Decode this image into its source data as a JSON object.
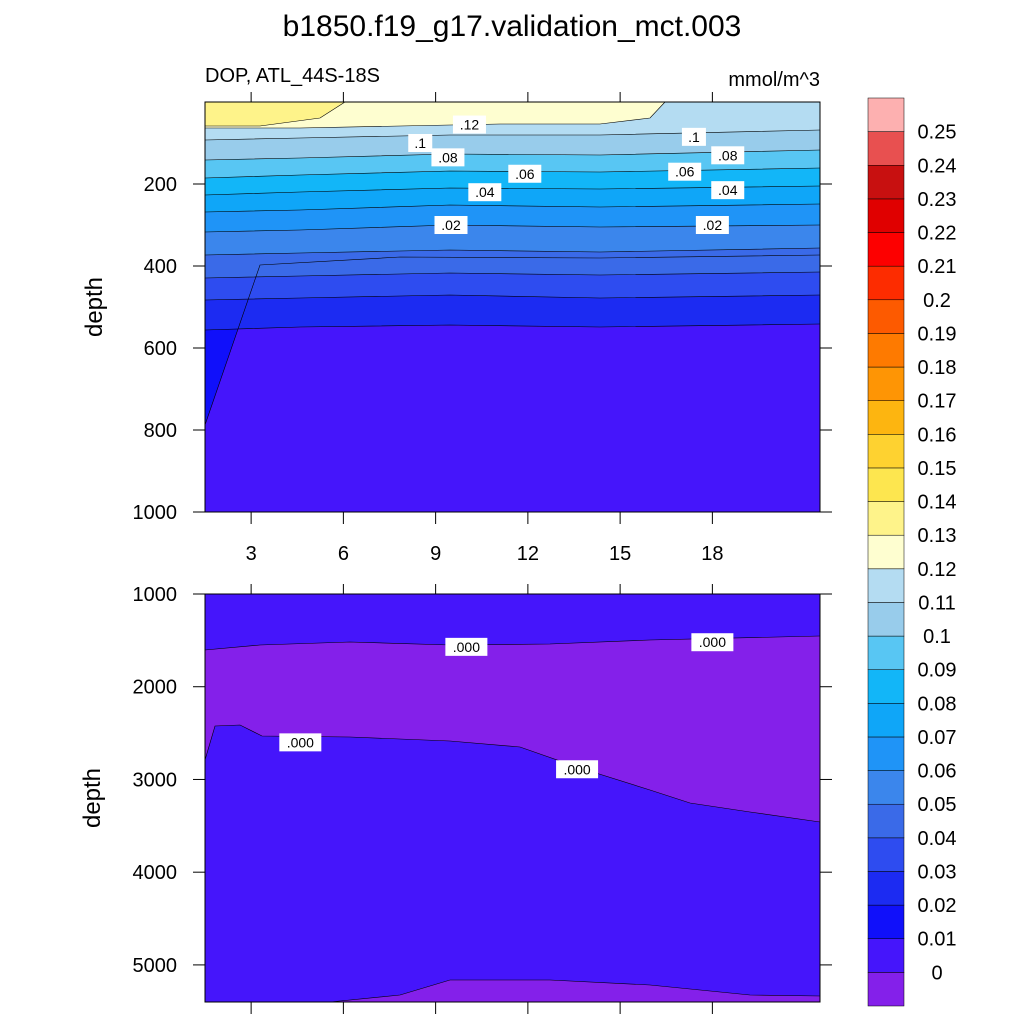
{
  "title": "b1850.f19_g17.validation_mct.003",
  "subtitle_left": "DOP, ATL_44S-18S",
  "subtitle_right": "mmol/m^3",
  "chart_data": {
    "type": "heatmap",
    "colorbar": {
      "labels": [
        "0",
        "0.01",
        "0.02",
        "0.03",
        "0.04",
        "0.05",
        "0.06",
        "0.07",
        "0.08",
        "0.09",
        "0.1",
        "0.11",
        "0.12",
        "0.13",
        "0.14",
        "0.15",
        "0.16",
        "0.17",
        "0.18",
        "0.19",
        "0.2",
        "0.21",
        "0.22",
        "0.23",
        "0.24",
        "0.25"
      ],
      "colors": [
        "#8420ea",
        "#4515fb",
        "#1010fa",
        "#1c2bf2",
        "#2e4cf0",
        "#3a6ae8",
        "#3b86ec",
        "#1f94f7",
        "#0fa6f8",
        "#12b6f8",
        "#58c6f3",
        "#98cceb",
        "#b4dcf2",
        "#fefed0",
        "#fef38a",
        "#fde64f",
        "#fed230",
        "#fdb510",
        "#fe9505",
        "#fe7a00",
        "#fd5a00",
        "#fd2c00",
        "#fd0000",
        "#e00000",
        "#c81010",
        "#e85050",
        "#fdb0b0"
      ]
    },
    "panels": [
      {
        "name": "upper",
        "xlabel": "",
        "ylabel": "depth",
        "xlim": [
          1.5,
          21.5
        ],
        "ylim": [
          1000,
          0
        ],
        "x_ticks": [
          3,
          6,
          9,
          12,
          15,
          18
        ],
        "y_ticks": [
          200,
          400,
          600,
          800,
          1000
        ],
        "background_value": 0.005,
        "contour_labels": [
          {
            "text": ".12",
            "x": 10.1,
            "y": 55
          },
          {
            "text": ".1",
            "x": 8.5,
            "y": 100
          },
          {
            "text": ".08",
            "x": 9.4,
            "y": 135
          },
          {
            "text": ".06",
            "x": 11.9,
            "y": 175
          },
          {
            "text": ".04",
            "x": 10.6,
            "y": 220
          },
          {
            "text": ".02",
            "x": 9.5,
            "y": 300
          },
          {
            "text": ".1",
            "x": 17.4,
            "y": 85
          },
          {
            "text": ".08",
            "x": 18.5,
            "y": 130
          },
          {
            "text": ".06",
            "x": 17.1,
            "y": 170
          },
          {
            "text": ".04",
            "x": 18.5,
            "y": 215
          },
          {
            "text": ".02",
            "x": 18.0,
            "y": 300
          }
        ]
      },
      {
        "name": "lower",
        "xlabel": "",
        "ylabel": "depth",
        "xlim": [
          1.5,
          21.5
        ],
        "ylim": [
          5400,
          1000
        ],
        "x_ticks": [
          3,
          6,
          9,
          12,
          15,
          18
        ],
        "y_ticks": [
          1000,
          2000,
          3000,
          4000,
          5000
        ],
        "contour_labels": [
          {
            "text": ".000",
            "x": 10.0,
            "y": 1570
          },
          {
            "text": ".000",
            "x": 18.0,
            "y": 1520
          },
          {
            "text": ".000",
            "x": 4.6,
            "y": 2600
          },
          {
            "text": ".000",
            "x": 13.6,
            "y": 2890
          }
        ]
      }
    ]
  }
}
